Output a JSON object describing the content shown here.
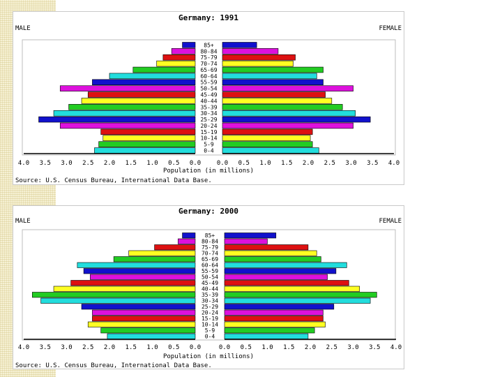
{
  "page": {
    "background": "#ffffff",
    "strip_color": "#f6f1d4"
  },
  "age_groups": [
    "0-4",
    "5-9",
    "10-14",
    "15-19",
    "20-24",
    "25-29",
    "30-34",
    "35-39",
    "40-44",
    "45-49",
    "50-54",
    "55-59",
    "60-64",
    "65-69",
    "70-74",
    "75-79",
    "80-84",
    "85+"
  ],
  "bar_colors": [
    "#22dddd",
    "#22cc22",
    "#ffff22",
    "#dd1111",
    "#dd11dd",
    "#1111cc",
    "#22dddd",
    "#22cc22",
    "#ffff22",
    "#dd1111",
    "#dd11dd",
    "#1111cc",
    "#22dddd",
    "#22cc22",
    "#ffff22",
    "#dd1111",
    "#dd11dd",
    "#1111cc"
  ],
  "chart_data": [
    {
      "type": "bar",
      "title": "Germany: 1991",
      "left_label": "MALE",
      "right_label": "FEMALE",
      "xlabel": "Population (in millions)",
      "source": "Source: U.S. Census Bureau, International Data Base.",
      "xlim": [
        0,
        4.0
      ],
      "ticks": [
        "4.0",
        "3.5",
        "3.0",
        "2.5",
        "2.0",
        "1.5",
        "1.0",
        "0.5",
        "0.0",
        "0.0",
        "0.5",
        "1.0",
        "1.5",
        "2.0",
        "2.5",
        "3.0",
        "3.5",
        "4.0"
      ],
      "categories": [
        "0-4",
        "5-9",
        "10-14",
        "15-19",
        "20-24",
        "25-29",
        "30-34",
        "35-39",
        "40-44",
        "45-49",
        "50-54",
        "55-59",
        "60-64",
        "65-69",
        "70-74",
        "75-79",
        "80-84",
        "85+"
      ],
      "series": [
        {
          "name": "MALE",
          "values": [
            2.35,
            2.25,
            2.15,
            2.2,
            3.15,
            3.65,
            3.3,
            2.95,
            2.65,
            2.5,
            3.15,
            2.4,
            2.0,
            1.45,
            0.9,
            0.75,
            0.55,
            0.3
          ]
        },
        {
          "name": "FEMALE",
          "values": [
            2.25,
            2.1,
            2.05,
            2.1,
            3.05,
            3.45,
            3.1,
            2.8,
            2.55,
            2.4,
            3.05,
            2.35,
            2.2,
            2.35,
            1.65,
            1.7,
            1.3,
            0.8
          ]
        }
      ]
    },
    {
      "type": "bar",
      "title": "Germany: 2000",
      "left_label": "MALE",
      "right_label": "FEMALE",
      "xlabel": "Population (in millions)",
      "source": "Source: U.S. Census Bureau, International Data Base.",
      "xlim": [
        0,
        4.0
      ],
      "ticks": [
        "4.0",
        "3.5",
        "3.0",
        "2.5",
        "2.0",
        "1.5",
        "1.0",
        "0.5",
        "0.0",
        "0.0",
        "0.5",
        "1.0",
        "1.5",
        "2.0",
        "2.5",
        "3.0",
        "3.5",
        "4.0"
      ],
      "categories": [
        "0-4",
        "5-9",
        "10-14",
        "15-19",
        "20-24",
        "25-29",
        "30-34",
        "35-39",
        "40-44",
        "45-49",
        "50-54",
        "55-59",
        "60-64",
        "65-69",
        "70-74",
        "75-79",
        "80-84",
        "85+"
      ],
      "series": [
        {
          "name": "MALE",
          "values": [
            2.05,
            2.2,
            2.5,
            2.4,
            2.4,
            2.65,
            3.6,
            3.8,
            3.3,
            2.9,
            2.45,
            2.6,
            2.75,
            1.9,
            1.55,
            0.95,
            0.4,
            0.3
          ]
        },
        {
          "name": "FEMALE",
          "values": [
            1.95,
            2.1,
            2.35,
            2.3,
            2.3,
            2.55,
            3.4,
            3.55,
            3.15,
            2.9,
            2.4,
            2.6,
            2.85,
            2.25,
            2.15,
            1.95,
            1.0,
            1.2
          ]
        }
      ]
    }
  ]
}
